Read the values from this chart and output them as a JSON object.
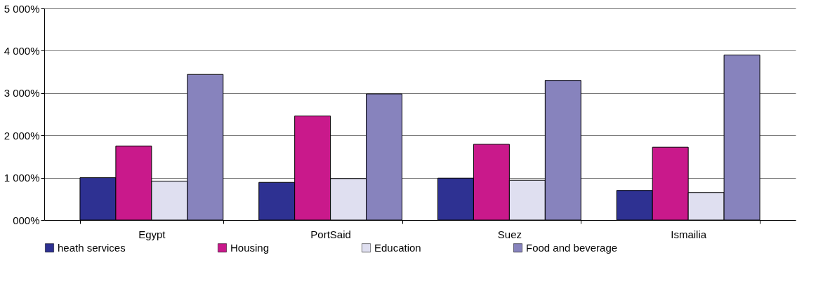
{
  "chart_data": {
    "type": "bar",
    "categories": [
      "Egypt",
      "PortSaid",
      "Suez",
      "Ismailia"
    ],
    "series": [
      {
        "name": "heath services",
        "color": "#2e3192",
        "values": [
          1000,
          890,
          990,
          700
        ]
      },
      {
        "name": "Housing",
        "color": "#c9198b",
        "values": [
          1750,
          2460,
          1790,
          1720
        ]
      },
      {
        "name": "Education",
        "color": "#dfdff0",
        "values": [
          920,
          980,
          940,
          650
        ]
      },
      {
        "name": "Food and beverage",
        "color": "#8783bd",
        "values": [
          3440,
          2980,
          3300,
          3900
        ]
      }
    ],
    "ylim": [
      0,
      5000
    ],
    "yticks": [
      {
        "value": 0,
        "label": "000%"
      },
      {
        "value": 1000,
        "label": "1 000%"
      },
      {
        "value": 2000,
        "label": "2 000%"
      },
      {
        "value": 3000,
        "label": "3 000%"
      },
      {
        "value": 4000,
        "label": "4 000%"
      },
      {
        "value": 5000,
        "label": "5 000%"
      }
    ],
    "grid": "y",
    "legend": "bottom"
  }
}
